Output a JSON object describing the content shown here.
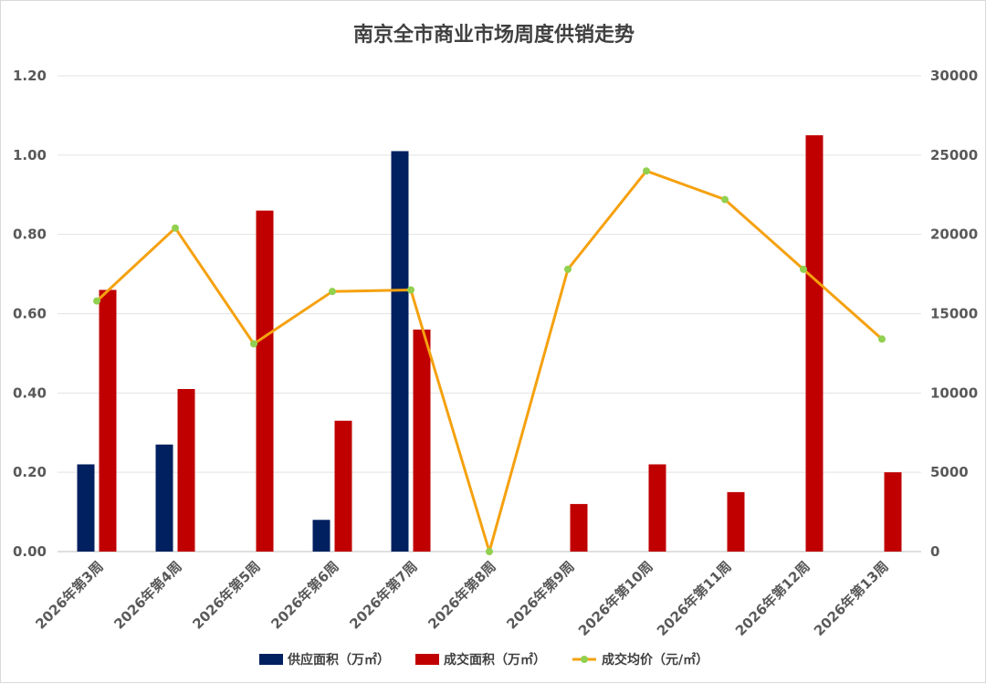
{
  "chart_data": {
    "type": "bar",
    "title": "南京全市商业市场周度供销走势",
    "categories": [
      "2026年第3周",
      "2026年第4周",
      "2026年第5周",
      "2026年第6周",
      "2026年第7周",
      "2026年第8周",
      "2026年第9周",
      "2026年第10周",
      "2026年第11周",
      "2026年第12周",
      "2026年第13周"
    ],
    "series": [
      {
        "name": "供应面积（万㎡）",
        "type": "bar",
        "axis": "left",
        "color": "#002060",
        "values": [
          0.22,
          0.27,
          0,
          0.08,
          1.01,
          0,
          0,
          0,
          0,
          0,
          0
        ]
      },
      {
        "name": "成交面积（万㎡）",
        "type": "bar",
        "axis": "left",
        "color": "#C00000",
        "values": [
          0.66,
          0.41,
          0.86,
          0.33,
          0.56,
          0,
          0.12,
          0.22,
          0.15,
          1.05,
          0.2
        ]
      },
      {
        "name": "成交均价（元/㎡）",
        "type": "line",
        "axis": "right",
        "color": "#F5A10F",
        "marker_color": "#92D050",
        "values": [
          15800,
          20400,
          13100,
          16400,
          16500,
          0,
          17800,
          24000,
          22200,
          17800,
          13400
        ]
      }
    ],
    "left_axis": {
      "ylim": [
        0,
        1.2
      ],
      "ticks": [
        "0.00",
        "0.20",
        "0.40",
        "0.60",
        "0.80",
        "1.00",
        "1.20"
      ]
    },
    "right_axis": {
      "ylim": [
        0,
        30000
      ],
      "ticks": [
        "0",
        "5000",
        "10000",
        "15000",
        "20000",
        "25000",
        "30000"
      ]
    },
    "grid": true,
    "legend_position": "bottom"
  }
}
